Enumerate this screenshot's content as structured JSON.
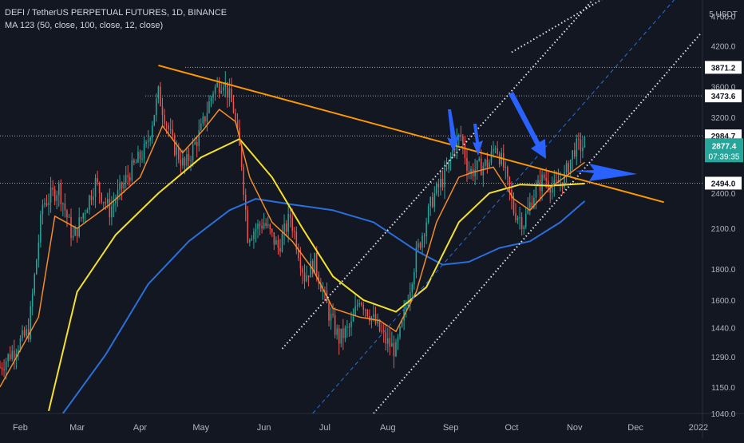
{
  "header": {
    "symbol_line": "DEFI / TetherUS PERPETUAL FUTURES, 1D, BINANCE",
    "indicator_line": "MA 123 (50, close, 100, close, 12, close)"
  },
  "price_axis": {
    "unit": "5 USDT",
    "ticks": [
      "4700.0",
      "4200.0",
      "3600.0",
      "3200.0",
      "2400.0",
      "2100.0",
      "1800.0",
      "1600.0",
      "1440.0",
      "1290.0",
      "1150.0",
      "1040.0"
    ],
    "marker_labels": [
      "3871.2",
      "3473.6",
      "2984.7",
      "2494.0"
    ],
    "current_price": "2877.4",
    "countdown": "07:39:35"
  },
  "time_axis": {
    "labels": [
      "Feb",
      "Mar",
      "Apr",
      "May",
      "Jun",
      "Jul",
      "Aug",
      "Sep",
      "Oct",
      "Nov",
      "Dec",
      "2022"
    ]
  },
  "colors": {
    "background": "#131722",
    "candle_up": "#26a69a",
    "candle_down": "#ef5350",
    "ma_fast": "#f28c28",
    "ma_mid": "#f5e12b",
    "ma_slow": "#2a6fdb",
    "trendline": "#ff9800",
    "arrow": "#2962ff",
    "current_price_tag": "#26a69a"
  },
  "chart_data": {
    "type": "candlestick",
    "scale": "log",
    "ylim": [
      1040,
      5000
    ],
    "x_range": [
      "2021-01-22",
      "2022-01-03"
    ],
    "horizontal_levels": [
      3871.2,
      3473.6,
      2984.7,
      2494.0
    ],
    "trendline_points": [
      {
        "date": "2021-04-10",
        "price": 3900
      },
      {
        "date": "2021-12-15",
        "price": 2320
      }
    ],
    "channel_lines": [
      {
        "style": "dotted",
        "points": [
          {
            "date": "2021-06-10",
            "price": 1330
          },
          {
            "date": "2021-11-25",
            "price": 5700
          }
        ]
      },
      {
        "style": "dashed",
        "points": [
          {
            "date": "2021-06-25",
            "price": 1040
          },
          {
            "date": "2021-12-20",
            "price": 5000
          }
        ]
      },
      {
        "style": "dotted",
        "points": [
          {
            "date": "2021-07-25",
            "price": 1040
          },
          {
            "date": "2022-01-02",
            "price": 4400
          }
        ]
      },
      {
        "style": "dotted",
        "points": [
          {
            "date": "2021-10-01",
            "price": 4100
          },
          {
            "date": "2021-12-05",
            "price": 5500
          }
        ]
      }
    ],
    "price_anchors": [
      {
        "date": "2021-01-22",
        "price": 1240
      },
      {
        "date": "2021-02-05",
        "price": 1420
      },
      {
        "date": "2021-02-12",
        "price": 2300
      },
      {
        "date": "2021-02-20",
        "price": 2450
      },
      {
        "date": "2021-02-27",
        "price": 2020
      },
      {
        "date": "2021-03-10",
        "price": 2500
      },
      {
        "date": "2021-03-17",
        "price": 2250
      },
      {
        "date": "2021-03-27",
        "price": 2600
      },
      {
        "date": "2021-04-04",
        "price": 2850
      },
      {
        "date": "2021-04-10",
        "price": 3500
      },
      {
        "date": "2021-04-17",
        "price": 2900
      },
      {
        "date": "2021-04-23",
        "price": 2650
      },
      {
        "date": "2021-05-01",
        "price": 3050
      },
      {
        "date": "2021-05-07",
        "price": 3550
      },
      {
        "date": "2021-05-12",
        "price": 3700
      },
      {
        "date": "2021-05-17",
        "price": 3300
      },
      {
        "date": "2021-05-21",
        "price": 2700
      },
      {
        "date": "2021-05-24",
        "price": 2050
      },
      {
        "date": "2021-06-01",
        "price": 2150
      },
      {
        "date": "2021-06-08",
        "price": 1950
      },
      {
        "date": "2021-06-14",
        "price": 2200
      },
      {
        "date": "2021-06-21",
        "price": 1750
      },
      {
        "date": "2021-06-26",
        "price": 1850
      },
      {
        "date": "2021-07-03",
        "price": 1520
      },
      {
        "date": "2021-07-08",
        "price": 1380
      },
      {
        "date": "2021-07-14",
        "price": 1450
      },
      {
        "date": "2021-07-18",
        "price": 1620
      },
      {
        "date": "2021-07-23",
        "price": 1520
      },
      {
        "date": "2021-07-31",
        "price": 1370
      },
      {
        "date": "2021-08-05",
        "price": 1320
      },
      {
        "date": "2021-08-08",
        "price": 1450
      },
      {
        "date": "2021-08-15",
        "price": 1900
      },
      {
        "date": "2021-08-23",
        "price": 2350
      },
      {
        "date": "2021-08-30",
        "price": 2600
      },
      {
        "date": "2021-09-03",
        "price": 2900
      },
      {
        "date": "2021-09-06",
        "price": 2980
      },
      {
        "date": "2021-09-10",
        "price": 2600
      },
      {
        "date": "2021-09-15",
        "price": 2650
      },
      {
        "date": "2021-09-20",
        "price": 2700
      },
      {
        "date": "2021-09-23",
        "price": 2900
      },
      {
        "date": "2021-09-27",
        "price": 2650
      },
      {
        "date": "2021-10-02",
        "price": 2250
      },
      {
        "date": "2021-10-07",
        "price": 2150
      },
      {
        "date": "2021-10-12",
        "price": 2400
      },
      {
        "date": "2021-10-17",
        "price": 2550
      },
      {
        "date": "2021-10-22",
        "price": 2450
      },
      {
        "date": "2021-10-27",
        "price": 2550
      },
      {
        "date": "2021-11-01",
        "price": 2850
      },
      {
        "date": "2021-11-06",
        "price": 2877.4
      }
    ],
    "ma_fast_anchors": [
      {
        "date": "2021-01-22",
        "price": 1150
      },
      {
        "date": "2021-02-10",
        "price": 1500
      },
      {
        "date": "2021-02-18",
        "price": 2200
      },
      {
        "date": "2021-03-01",
        "price": 2100
      },
      {
        "date": "2021-03-17",
        "price": 2300
      },
      {
        "date": "2021-04-01",
        "price": 2550
      },
      {
        "date": "2021-04-12",
        "price": 3100
      },
      {
        "date": "2021-04-22",
        "price": 2800
      },
      {
        "date": "2021-05-02",
        "price": 3050
      },
      {
        "date": "2021-05-10",
        "price": 3300
      },
      {
        "date": "2021-05-18",
        "price": 3150
      },
      {
        "date": "2021-05-25",
        "price": 2550
      },
      {
        "date": "2021-06-05",
        "price": 2150
      },
      {
        "date": "2021-06-15",
        "price": 2000
      },
      {
        "date": "2021-06-25",
        "price": 1800
      },
      {
        "date": "2021-07-05",
        "price": 1550
      },
      {
        "date": "2021-07-18",
        "price": 1500
      },
      {
        "date": "2021-07-28",
        "price": 1480
      },
      {
        "date": "2021-08-05",
        "price": 1420
      },
      {
        "date": "2021-08-15",
        "price": 1650
      },
      {
        "date": "2021-08-25",
        "price": 2150
      },
      {
        "date": "2021-09-05",
        "price": 2550
      },
      {
        "date": "2021-09-12",
        "price": 2600
      },
      {
        "date": "2021-09-22",
        "price": 2650
      },
      {
        "date": "2021-10-02",
        "price": 2350
      },
      {
        "date": "2021-10-10",
        "price": 2250
      },
      {
        "date": "2021-10-20",
        "price": 2450
      },
      {
        "date": "2021-11-06",
        "price": 2700
      }
    ],
    "ma_mid_anchors": [
      {
        "date": "2021-02-15",
        "price": 1050
      },
      {
        "date": "2021-03-01",
        "price": 1650
      },
      {
        "date": "2021-03-20",
        "price": 2050
      },
      {
        "date": "2021-04-10",
        "price": 2400
      },
      {
        "date": "2021-05-01",
        "price": 2750
      },
      {
        "date": "2021-05-20",
        "price": 2950
      },
      {
        "date": "2021-06-05",
        "price": 2550
      },
      {
        "date": "2021-06-20",
        "price": 2100
      },
      {
        "date": "2021-07-05",
        "price": 1750
      },
      {
        "date": "2021-07-20",
        "price": 1600
      },
      {
        "date": "2021-08-05",
        "price": 1530
      },
      {
        "date": "2021-08-20",
        "price": 1680
      },
      {
        "date": "2021-09-05",
        "price": 2150
      },
      {
        "date": "2021-09-20",
        "price": 2400
      },
      {
        "date": "2021-10-05",
        "price": 2480
      },
      {
        "date": "2021-10-20",
        "price": 2470
      },
      {
        "date": "2021-11-06",
        "price": 2490
      }
    ],
    "ma_slow_anchors": [
      {
        "date": "2021-02-22",
        "price": 1040
      },
      {
        "date": "2021-03-15",
        "price": 1300
      },
      {
        "date": "2021-04-05",
        "price": 1700
      },
      {
        "date": "2021-04-25",
        "price": 2000
      },
      {
        "date": "2021-05-15",
        "price": 2250
      },
      {
        "date": "2021-05-28",
        "price": 2350
      },
      {
        "date": "2021-06-15",
        "price": 2300
      },
      {
        "date": "2021-07-05",
        "price": 2250
      },
      {
        "date": "2021-07-25",
        "price": 2150
      },
      {
        "date": "2021-08-15",
        "price": 1930
      },
      {
        "date": "2021-08-28",
        "price": 1830
      },
      {
        "date": "2021-09-10",
        "price": 1850
      },
      {
        "date": "2021-09-25",
        "price": 1950
      },
      {
        "date": "2021-10-10",
        "price": 2000
      },
      {
        "date": "2021-10-25",
        "price": 2150
      },
      {
        "date": "2021-11-06",
        "price": 2330
      }
    ]
  }
}
